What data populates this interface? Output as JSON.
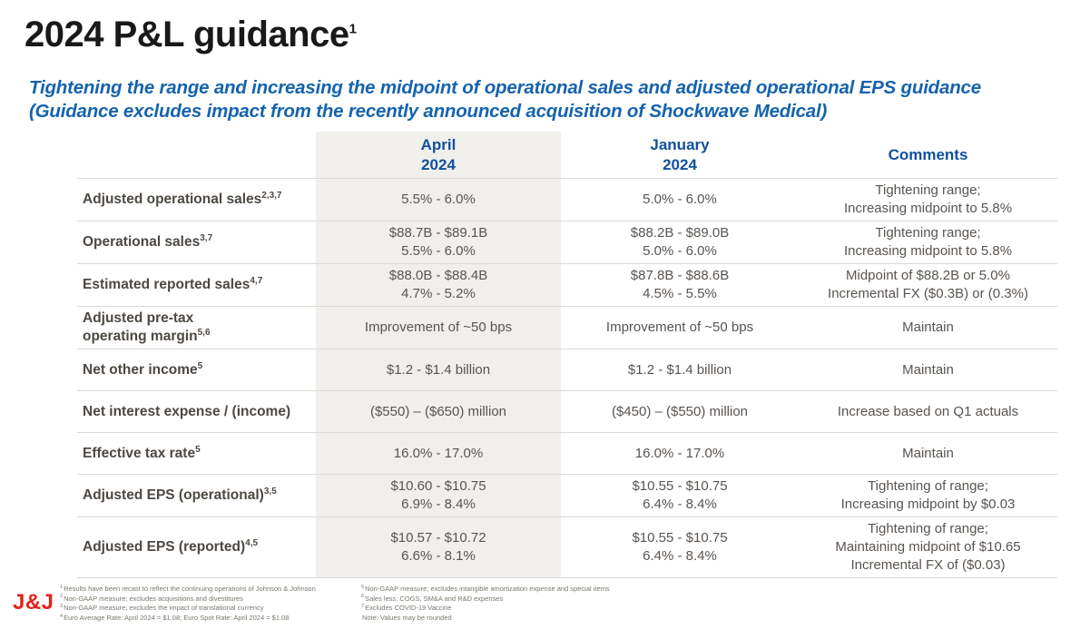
{
  "title": {
    "text": "2024 P&L guidance",
    "superscript": "1"
  },
  "subtitle": {
    "line1": "Tightening the range and increasing the midpoint of operational sales and adjusted operational EPS guidance",
    "line2": "(Guidance excludes impact from the recently announced acquisition of Shockwave Medical)"
  },
  "table": {
    "header": {
      "april": [
        "April",
        "2024"
      ],
      "january": [
        "January",
        "2024"
      ],
      "comments": "Comments"
    },
    "rows": [
      {
        "label_lines": [
          "Adjusted operational sales"
        ],
        "label_sup": "2,3,7",
        "april": [
          "5.5% - 6.0%"
        ],
        "january": [
          "5.0% - 6.0%"
        ],
        "comments": [
          "Tightening range;",
          "Increasing midpoint to 5.8%"
        ]
      },
      {
        "label_lines": [
          "Operational sales"
        ],
        "label_sup": "3,7",
        "april": [
          "$88.7B - $89.1B",
          "5.5% - 6.0%"
        ],
        "january": [
          "$88.2B - $89.0B",
          "5.0% - 6.0%"
        ],
        "comments": [
          "Tightening range;",
          "Increasing midpoint to 5.8%"
        ]
      },
      {
        "label_lines": [
          "Estimated reported sales"
        ],
        "label_sup": "4,7",
        "april": [
          "$88.0B - $88.4B",
          "4.7% - 5.2%"
        ],
        "january": [
          "$87.8B - $88.6B",
          "4.5% - 5.5%"
        ],
        "comments": [
          "Midpoint of $88.2B or 5.0%",
          "Incremental FX ($0.3B) or (0.3%)"
        ]
      },
      {
        "label_lines": [
          "Adjusted pre-tax",
          "operating margin"
        ],
        "label_sup": "5,6",
        "april": [
          "Improvement of ~50 bps"
        ],
        "january": [
          "Improvement of ~50 bps"
        ],
        "comments": [
          "Maintain"
        ]
      },
      {
        "label_lines": [
          "Net other income"
        ],
        "label_sup": "5",
        "april": [
          "$1.2 - $1.4 billion"
        ],
        "january": [
          "$1.2 - $1.4 billion"
        ],
        "comments": [
          "Maintain"
        ]
      },
      {
        "label_lines": [
          "Net interest expense / (income)"
        ],
        "label_sup": "",
        "april": [
          "($550) – ($650) million"
        ],
        "january": [
          "($450) – ($550) million"
        ],
        "comments": [
          "Increase based on Q1 actuals"
        ]
      },
      {
        "label_lines": [
          "Effective tax rate"
        ],
        "label_sup": "5",
        "april": [
          "16.0% - 17.0%"
        ],
        "january": [
          "16.0% - 17.0%"
        ],
        "comments": [
          "Maintain"
        ]
      },
      {
        "label_lines": [
          "Adjusted EPS (operational)"
        ],
        "label_sup": "3,5",
        "april": [
          "$10.60 - $10.75",
          "6.9% - 8.4%"
        ],
        "january": [
          "$10.55 - $10.75",
          "6.4% - 8.4%"
        ],
        "comments": [
          "Tightening of range;",
          "Increasing midpoint by $0.03"
        ]
      },
      {
        "label_lines": [
          "Adjusted EPS (reported)"
        ],
        "label_sup": "4,5",
        "april": [
          "$10.57 - $10.72",
          "6.6% - 8.1%"
        ],
        "january": [
          "$10.55 - $10.75",
          "6.4% - 8.4%"
        ],
        "comments": [
          "Tightening of range;",
          "Maintaining midpoint of $10.65",
          "Incremental FX of ($0.03)"
        ]
      }
    ]
  },
  "footnotes": {
    "left": [
      {
        "sup": "1",
        "text": "Results have been recast to reflect the continuing operations of Johnson & Johnson"
      },
      {
        "sup": "2",
        "text": "Non-GAAP measure; excludes acquisitions and divestitures"
      },
      {
        "sup": "3",
        "text": "Non-GAAP measure; excludes the impact of translational currency"
      },
      {
        "sup": "4",
        "text": "Euro Average Rate: April 2024 = $1.08; Euro Spot Rate: April 2024 = $1.08"
      }
    ],
    "right": [
      {
        "sup": "5",
        "text": "Non-GAAP measure; excludes intangible amortization expense and special items"
      },
      {
        "sup": "6",
        "text": "Sales less: COGS, SM&A and R&D expenses"
      },
      {
        "sup": "7",
        "text": "Excludes COVID-19 Vaccine"
      },
      {
        "sup": "",
        "text": "Note: Values may be rounded"
      }
    ]
  },
  "logo": {
    "text": "J&J"
  },
  "colors": {
    "header_blue": "#10509e",
    "subtitle_blue": "#1563ae",
    "brand_red": "#e3231a",
    "april_column_bg": "#f0efec",
    "row_border": "#dcdad5"
  }
}
